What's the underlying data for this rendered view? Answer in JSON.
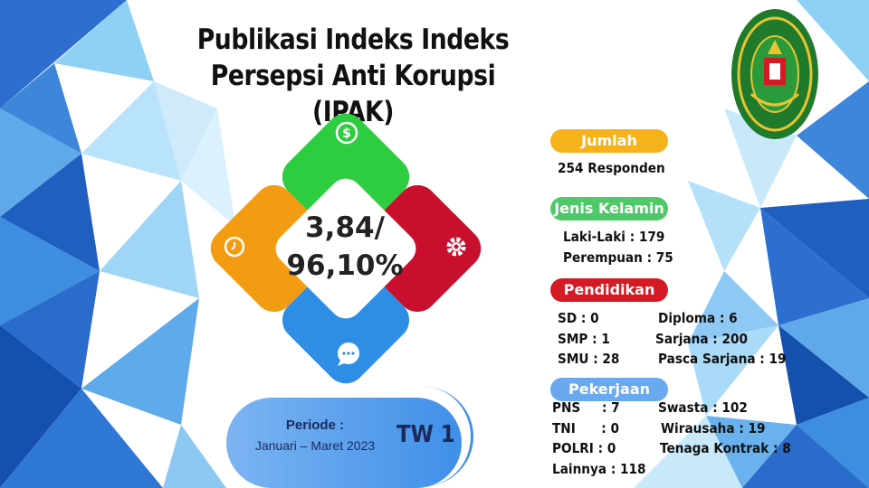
{
  "title": {
    "line1": "Publikasi Indeks Indeks",
    "line2": "Persepsi Anti Korupsi (IPAK)"
  },
  "score": {
    "line1": "3,84/",
    "line2": "96,10%"
  },
  "diamond_icons": [
    "dollar-icon",
    "gear-icon",
    "chat-icon",
    "clock-icon"
  ],
  "period": {
    "label": "Periode :",
    "range": "Januari – Maret 2023",
    "quarter": "TW 1"
  },
  "sections": {
    "jumlah": {
      "label": "Jumlah",
      "value": "254 Responden",
      "color": "#f6b21b"
    },
    "gender": {
      "label": "Jenis Kelamin",
      "color": "#4fc86a",
      "items": [
        "Laki-Laki : 179",
        "Perempuan : 75"
      ]
    },
    "pendidikan": {
      "label": "Pendidikan",
      "color": "#d41a24",
      "left": [
        "SD : 0",
        "SMP : 1",
        "SMU : 28"
      ],
      "right": [
        "Diploma  : 6",
        "Sarjana : 200",
        "Pasca Sarjana : 19"
      ]
    },
    "pekerjaan": {
      "label": "Pekerjaan",
      "color": "#6aa8ef",
      "left": [
        "PNS     : 7",
        "TNI      : 0",
        "POLRI : 0",
        "Lainnya : 118"
      ],
      "right": [
        "Swasta : 102",
        "Wirausaha : 19",
        "Tenaga Kontrak : 8"
      ]
    }
  },
  "colors": {
    "green": "#2ecc40",
    "red": "#c8102e",
    "blue": "#2e8ee6",
    "orange": "#f39c12"
  }
}
